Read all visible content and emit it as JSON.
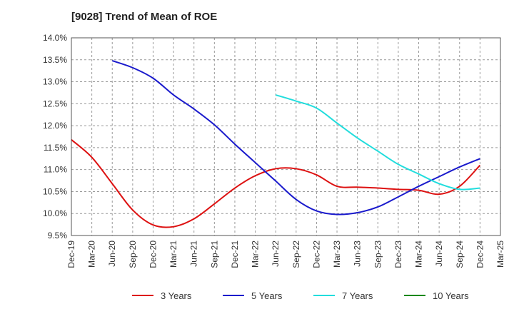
{
  "chart_data": {
    "type": "line",
    "title": "[9028]  Trend of Mean of ROE",
    "xlabel": "",
    "ylabel": "",
    "x": [
      "Dec-19",
      "Mar-20",
      "Jun-20",
      "Sep-20",
      "Dec-20",
      "Mar-21",
      "Jun-21",
      "Sep-21",
      "Dec-21",
      "Mar-22",
      "Jun-22",
      "Sep-22",
      "Dec-22",
      "Mar-23",
      "Jun-23",
      "Sep-23",
      "Dec-23",
      "Mar-24",
      "Jun-24",
      "Sep-24",
      "Dec-24",
      "Mar-25"
    ],
    "ylim": [
      9.5,
      14.0
    ],
    "yticks": [
      "14.0%",
      "13.5%",
      "13.0%",
      "12.5%",
      "12.0%",
      "11.5%",
      "11.0%",
      "10.5%",
      "10.0%",
      "9.5%"
    ],
    "grid": true,
    "legend_position": "bottom",
    "series": [
      {
        "name": "3 Years",
        "color": "#dd1111",
        "values": [
          11.68,
          11.28,
          10.68,
          10.08,
          9.74,
          9.7,
          9.88,
          10.22,
          10.58,
          10.86,
          11.02,
          11.02,
          10.88,
          10.62,
          10.6,
          10.58,
          10.55,
          10.53,
          10.44,
          10.62,
          11.1,
          null
        ]
      },
      {
        "name": "5 Years",
        "color": "#1a1acc",
        "values": [
          null,
          null,
          13.48,
          13.32,
          13.08,
          12.7,
          12.38,
          12.02,
          11.58,
          11.16,
          10.74,
          10.32,
          10.06,
          9.98,
          10.02,
          10.15,
          10.38,
          10.62,
          10.84,
          11.06,
          11.25,
          null
        ]
      },
      {
        "name": "7 Years",
        "color": "#22dddd",
        "values": [
          null,
          null,
          null,
          null,
          null,
          null,
          null,
          null,
          null,
          null,
          12.7,
          12.56,
          12.4,
          12.06,
          11.72,
          11.42,
          11.12,
          10.9,
          10.68,
          10.55,
          10.58,
          null
        ]
      },
      {
        "name": "10 Years",
        "color": "#118811",
        "values": [
          null,
          null,
          null,
          null,
          null,
          null,
          null,
          null,
          null,
          null,
          null,
          null,
          null,
          null,
          null,
          null,
          null,
          null,
          null,
          null,
          null,
          null
        ]
      }
    ]
  }
}
